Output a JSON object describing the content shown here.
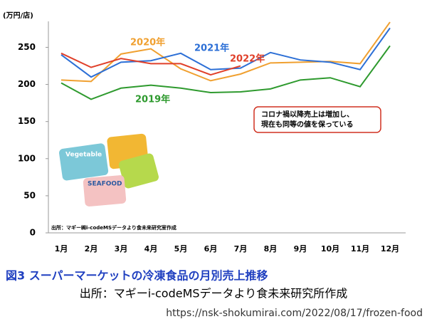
{
  "chart_data": {
    "type": "line",
    "y_axis_label": "(万円/店)",
    "categories": [
      "1月",
      "2月",
      "3月",
      "4月",
      "5月",
      "6月",
      "7月",
      "8月",
      "9月",
      "10月",
      "11月",
      "12月"
    ],
    "series": [
      {
        "name": "2019年",
        "color": "#2e9a2e",
        "values": [
          202,
          180,
          195,
          199,
          195,
          189,
          190,
          194,
          206,
          209,
          197,
          252
        ]
      },
      {
        "name": "2020年",
        "color": "#f0a030",
        "values": [
          206,
          204,
          241,
          248,
          221,
          205,
          214,
          229,
          230,
          231,
          228,
          284
        ]
      },
      {
        "name": "2021年",
        "color": "#2c6fd6",
        "values": [
          240,
          210,
          230,
          232,
          242,
          220,
          222,
          243,
          233,
          230,
          220,
          276
        ]
      },
      {
        "name": "2022年",
        "color": "#e0402a",
        "values": [
          242,
          223,
          235,
          228,
          228,
          213,
          225,
          null,
          null,
          null,
          null,
          null
        ]
      }
    ],
    "ylim": [
      0,
      285
    ],
    "yticks": [
      0,
      50,
      100,
      150,
      200,
      250
    ],
    "grid": false,
    "annotation": [
      "コロナ禍以降売上は増加し、",
      "現在も同等の値を保っている"
    ],
    "chart_source": "出所：マギー㈱i-codeMSデータより食未来研究室作成",
    "illustration": [
      "Vegetable",
      "SEAFOOD"
    ]
  },
  "caption": {
    "title": "図3 スーパーマーケットの冷凍食品の月別売上推移",
    "source": "出所：マギーi-codeMSデータより食未来研究所作成",
    "url": "https://nsk-shokumirai.com/2022/08/17/frozen-food"
  }
}
